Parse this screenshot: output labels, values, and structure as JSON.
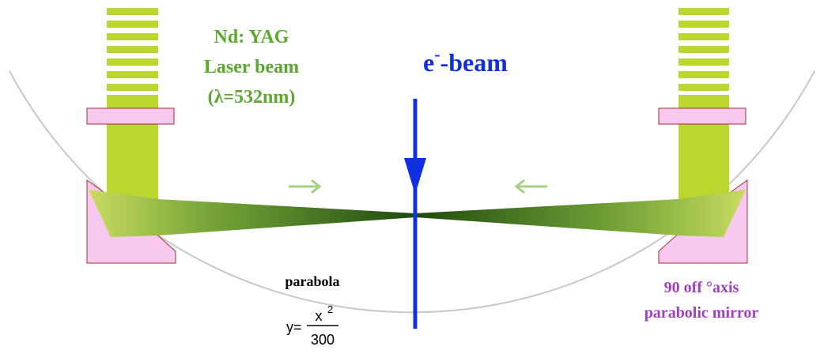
{
  "laser_label": {
    "line1": "Nd: YAG",
    "line2": "Laser beam",
    "line3": "(λ=532nm)"
  },
  "ebeam_label": {
    "main": "e",
    "sup": "-",
    "rest": "-beam"
  },
  "parabola_label": "parabola",
  "equation": {
    "lhs": "y=",
    "numerator": "x",
    "exponent": "2",
    "denominator": "300"
  },
  "mirror_label": {
    "line1": "90  off °axis",
    "line2": "parabolic mirror"
  }
}
